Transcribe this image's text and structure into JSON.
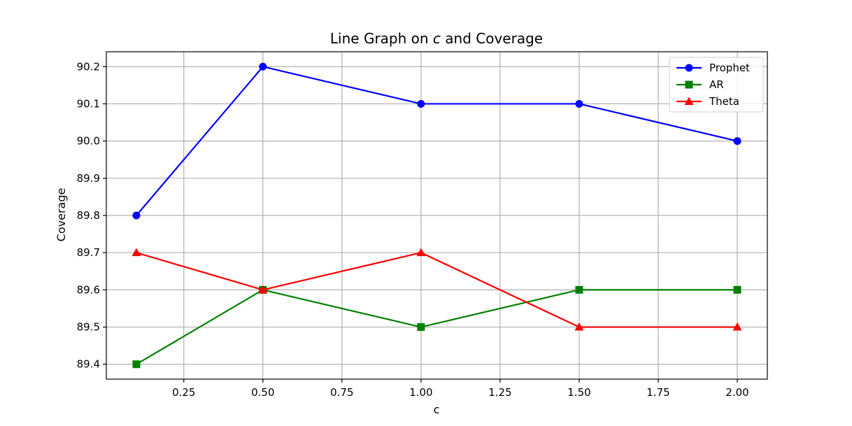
{
  "chart_data": {
    "type": "line",
    "title_prefix": "Line Graph on ",
    "title_var": "c",
    "title_suffix": " and Coverage",
    "xlabel": "c",
    "ylabel": "Coverage",
    "x": [
      0.1,
      0.5,
      1.0,
      1.5,
      2.0
    ],
    "xlim": [
      0.005,
      2.095
    ],
    "ylim": [
      89.36,
      90.24
    ],
    "xticks": [
      0.25,
      0.5,
      0.75,
      1.0,
      1.25,
      1.5,
      1.75,
      2.0
    ],
    "xtick_labels": [
      "0.25",
      "0.50",
      "0.75",
      "1.00",
      "1.25",
      "1.50",
      "1.75",
      "2.00"
    ],
    "yticks": [
      89.4,
      89.5,
      89.6,
      89.7,
      89.8,
      89.9,
      90.0,
      90.1,
      90.2
    ],
    "ytick_labels": [
      "89.4",
      "89.5",
      "89.6",
      "89.7",
      "89.8",
      "89.9",
      "90.0",
      "90.1",
      "90.2"
    ],
    "grid": true,
    "legend_position": "top-right",
    "series": [
      {
        "name": "Prophet",
        "values": [
          89.8,
          90.2,
          90.1,
          90.1,
          90.0
        ],
        "color": "#0000ff",
        "marker": "circle"
      },
      {
        "name": "AR",
        "values": [
          89.4,
          89.6,
          89.5,
          89.6,
          89.6
        ],
        "color": "#008000",
        "marker": "square"
      },
      {
        "name": "Theta",
        "values": [
          89.7,
          89.6,
          89.7,
          89.5,
          89.5
        ],
        "color": "#ff0000",
        "marker": "triangle"
      }
    ]
  }
}
